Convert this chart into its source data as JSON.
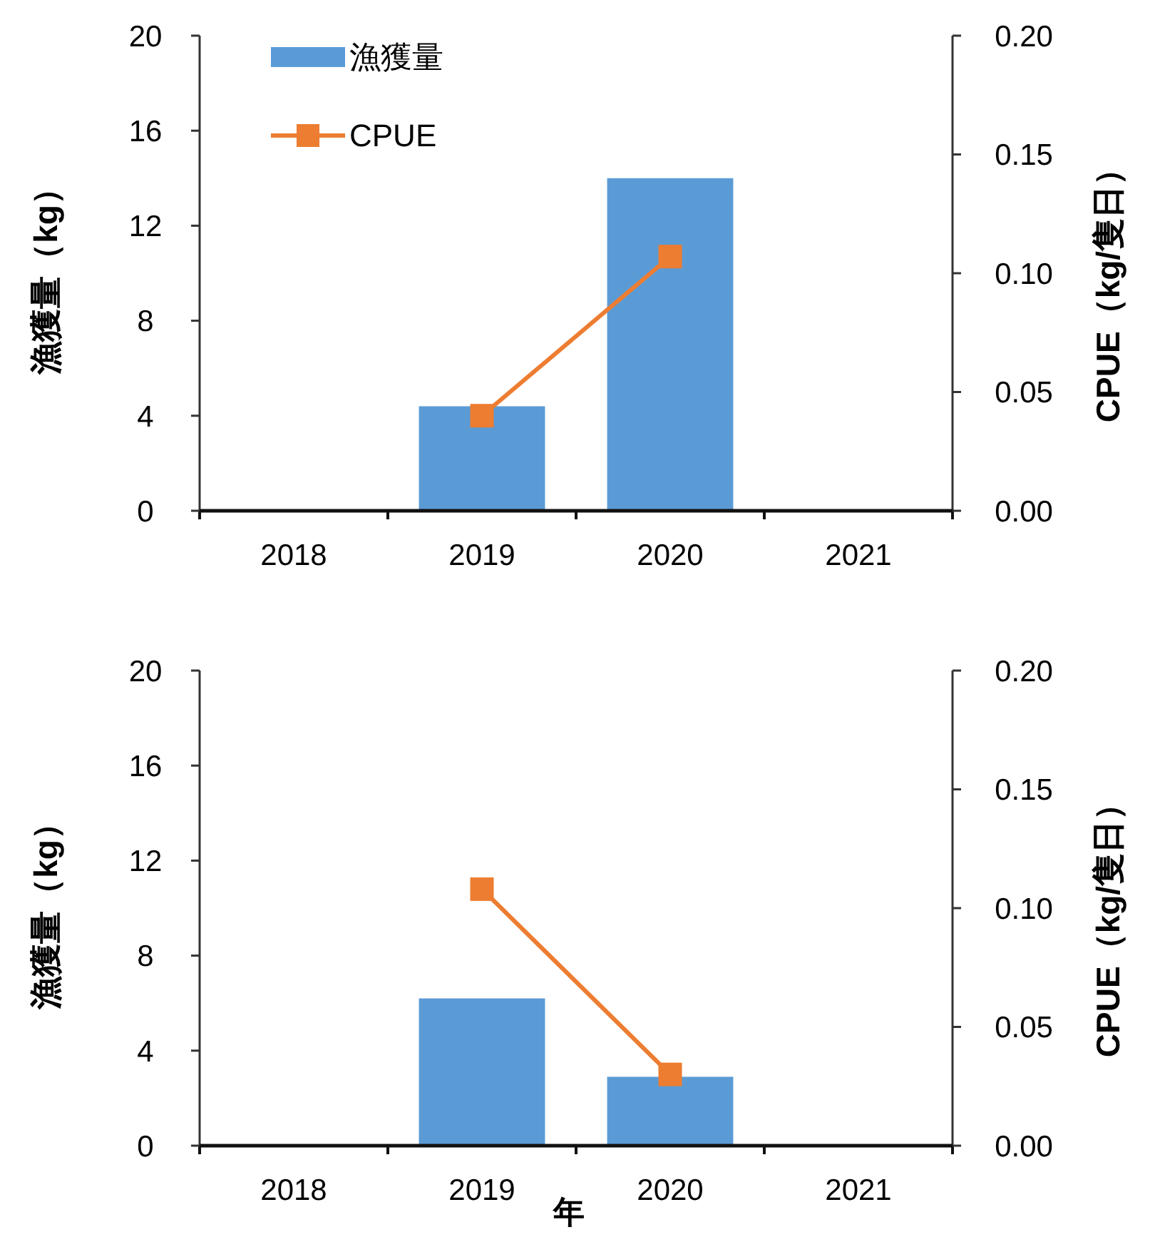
{
  "chart_data": [
    {
      "type": "bar",
      "categories": [
        "2018",
        "2019",
        "2020",
        "2021"
      ],
      "ylabel": "漁獲量（kg）",
      "y2label": "CPUE（kg/隻日）",
      "ylim": [
        0,
        20
      ],
      "yticks": [
        0,
        4,
        8,
        12,
        16,
        20
      ],
      "y2lim": [
        0,
        0.2
      ],
      "y2ticks": [
        {
          "value": 0,
          "label": "0.00"
        },
        {
          "value": 0.05,
          "label": "0.05"
        },
        {
          "value": 0.1,
          "label": "0.10"
        },
        {
          "value": 0.15,
          "label": "0.15"
        },
        {
          "value": 0.2,
          "label": "0.20"
        }
      ],
      "legend": "top left",
      "grid": false,
      "series": [
        {
          "name": "漁獲量",
          "color": "#5b9bd5",
          "values": [
            null,
            4.4,
            14.0,
            null
          ]
        },
        {
          "name": "CPUE",
          "type": "line",
          "axis": "y2",
          "color": "#ed7d31",
          "marker": "square",
          "values": [
            null,
            0.04,
            0.107,
            null
          ]
        }
      ]
    },
    {
      "type": "bar",
      "categories": [
        "2018",
        "2019",
        "2020",
        "2021"
      ],
      "xlabel": "年",
      "ylabel": "漁獲量（kg）",
      "y2label": "CPUE（kg/隻日）",
      "ylim": [
        0,
        20
      ],
      "yticks": [
        0,
        4,
        8,
        12,
        16,
        20
      ],
      "y2lim": [
        0,
        0.2
      ],
      "y2ticks": [
        {
          "value": 0,
          "label": "0.00"
        },
        {
          "value": 0.05,
          "label": "0.05"
        },
        {
          "value": 0.1,
          "label": "0.10"
        },
        {
          "value": 0.15,
          "label": "0.15"
        },
        {
          "value": 0.2,
          "label": "0.20"
        }
      ],
      "grid": false,
      "series": [
        {
          "color": "#5b9bd5",
          "values": [
            null,
            6.2,
            2.9,
            null
          ]
        },
        {
          "type": "line",
          "axis": "y2",
          "color": "#ed7d31",
          "marker": "square",
          "values": [
            null,
            0.108,
            0.03,
            null
          ]
        }
      ]
    }
  ]
}
